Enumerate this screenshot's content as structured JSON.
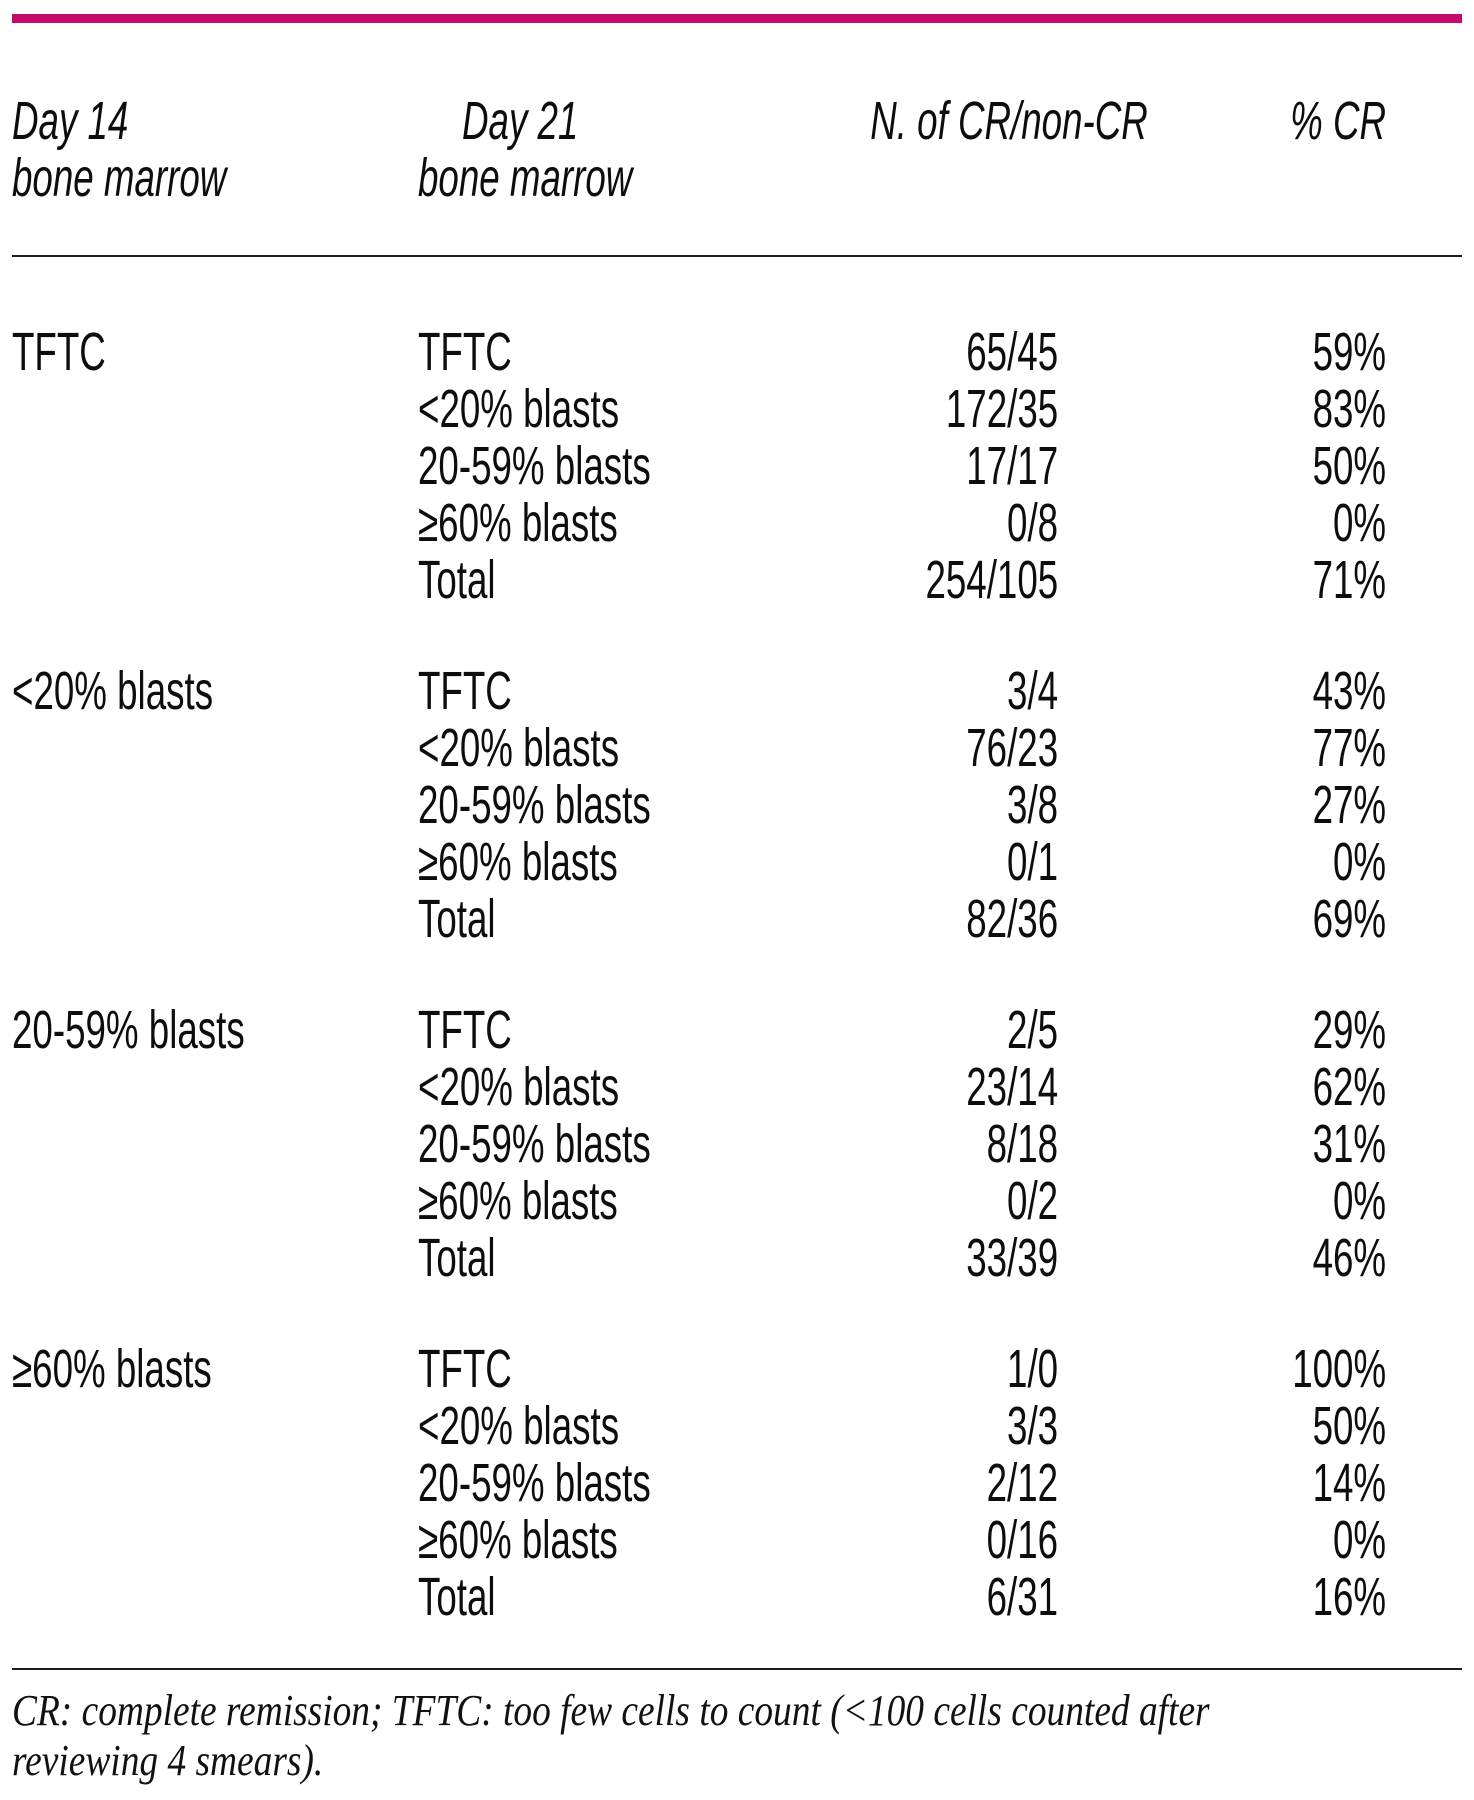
{
  "colors": {
    "accent": "#c40a6b",
    "rule": "#1c1c1c",
    "text": "#0d0d0d"
  },
  "header": {
    "col1_line1": "Day 14",
    "col1_line2": "bone marrow",
    "col2_line1": "Day 21",
    "col2_line2": "bone marrow",
    "col3": "N. of CR/non-CR",
    "col4": "% CR"
  },
  "groups": [
    {
      "day14": "TFTC",
      "rows": [
        {
          "day21": "TFTC",
          "n": "65/45",
          "pct": "59%"
        },
        {
          "day21": "<20% blasts",
          "n": "172/35",
          "pct": "83%"
        },
        {
          "day21": "20-59% blasts",
          "n": "17/17",
          "pct": "50%"
        },
        {
          "day21": "≥60% blasts",
          "n": "0/8",
          "pct": "0%"
        },
        {
          "day21": "Total",
          "n": "254/105",
          "pct": "71%"
        }
      ]
    },
    {
      "day14": "<20% blasts",
      "rows": [
        {
          "day21": "TFTC",
          "n": "3/4",
          "pct": "43%"
        },
        {
          "day21": "<20% blasts",
          "n": "76/23",
          "pct": "77%"
        },
        {
          "day21": "20-59% blasts",
          "n": "3/8",
          "pct": "27%"
        },
        {
          "day21": "≥60% blasts",
          "n": "0/1",
          "pct": "0%"
        },
        {
          "day21": "Total",
          "n": "82/36",
          "pct": "69%"
        }
      ]
    },
    {
      "day14": "20-59% blasts",
      "rows": [
        {
          "day21": "TFTC",
          "n": "2/5",
          "pct": "29%"
        },
        {
          "day21": "<20% blasts",
          "n": "23/14",
          "pct": "62%"
        },
        {
          "day21": "20-59% blasts",
          "n": "8/18",
          "pct": "31%"
        },
        {
          "day21": "≥60% blasts",
          "n": "0/2",
          "pct": "0%"
        },
        {
          "day21": "Total",
          "n": "33/39",
          "pct": "46%"
        }
      ]
    },
    {
      "day14": "≥60% blasts",
      "rows": [
        {
          "day21": "TFTC",
          "n": "1/0",
          "pct": "100%"
        },
        {
          "day21": "<20% blasts",
          "n": "3/3",
          "pct": "50%"
        },
        {
          "day21": "20-59% blasts",
          "n": "2/12",
          "pct": "14%"
        },
        {
          "day21": "≥60% blasts",
          "n": "0/16",
          "pct": "0%"
        },
        {
          "day21": "Total",
          "n": "6/31",
          "pct": "16%"
        }
      ]
    }
  ],
  "footnote": {
    "line1": "CR: complete remission; TFTC: too few cells to count (<100 cells counted after",
    "line2": "reviewing 4 smears)."
  }
}
